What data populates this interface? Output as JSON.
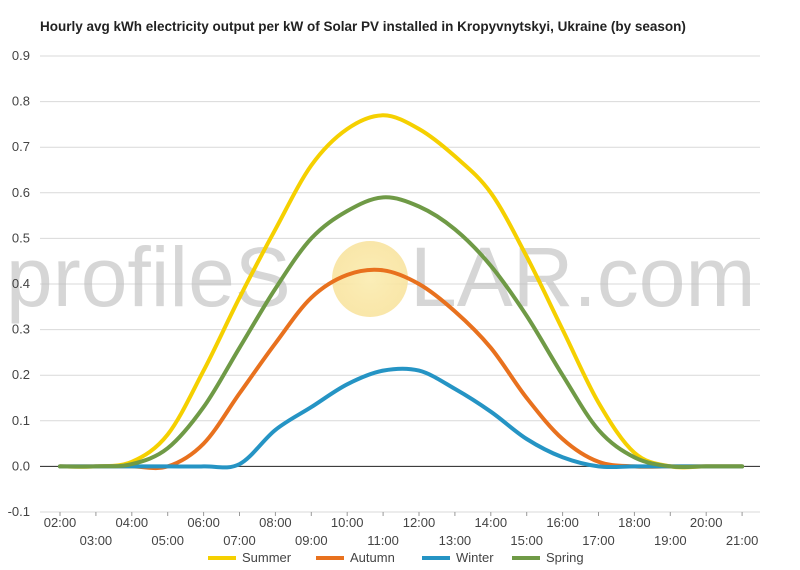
{
  "chart_data": {
    "type": "line",
    "title": "Hourly avg kWh electricity output per kW of Solar PV installed in Kropyvnytskyi, Ukraine (by season)",
    "xlabel": "",
    "ylabel": "",
    "ylim": [
      -0.1,
      0.9
    ],
    "yticks": [
      "-0.1",
      "0.0",
      "0.1",
      "0.2",
      "0.3",
      "0.4",
      "0.5",
      "0.6",
      "0.7",
      "0.8",
      "0.9"
    ],
    "xticks_upper": [
      "02:00",
      "04:00",
      "06:00",
      "08:00",
      "10:00",
      "12:00",
      "14:00",
      "16:00",
      "18:00",
      "20:00"
    ],
    "xticks_lower": [
      "03:00",
      "05:00",
      "07:00",
      "09:00",
      "11:00",
      "13:00",
      "15:00",
      "17:00",
      "19:00",
      "21:00"
    ],
    "x": [
      "02:00",
      "03:00",
      "04:00",
      "05:00",
      "06:00",
      "07:00",
      "08:00",
      "09:00",
      "10:00",
      "11:00",
      "12:00",
      "13:00",
      "14:00",
      "15:00",
      "16:00",
      "17:00",
      "18:00",
      "19:00",
      "20:00",
      "21:00"
    ],
    "grid": true,
    "legend_position": "bottom",
    "series": [
      {
        "name": "Summer",
        "color": "#f5d000",
        "values": [
          0.0,
          0.0,
          0.01,
          0.07,
          0.21,
          0.37,
          0.52,
          0.66,
          0.74,
          0.77,
          0.74,
          0.68,
          0.6,
          0.46,
          0.3,
          0.14,
          0.03,
          0.0,
          0.0,
          0.0
        ]
      },
      {
        "name": "Autumn",
        "color": "#e8711e",
        "values": [
          0.0,
          0.0,
          0.0,
          0.0,
          0.05,
          0.16,
          0.27,
          0.37,
          0.42,
          0.43,
          0.4,
          0.34,
          0.26,
          0.15,
          0.06,
          0.01,
          0.0,
          0.0,
          0.0,
          0.0
        ]
      },
      {
        "name": "Winter",
        "color": "#2594c4",
        "values": [
          0.0,
          0.0,
          0.0,
          0.0,
          0.0,
          0.005,
          0.08,
          0.13,
          0.18,
          0.21,
          0.21,
          0.17,
          0.12,
          0.06,
          0.02,
          0.0,
          0.0,
          0.0,
          0.0,
          0.0
        ]
      },
      {
        "name": "Spring",
        "color": "#6f9a46",
        "values": [
          0.0,
          0.0,
          0.005,
          0.04,
          0.13,
          0.26,
          0.39,
          0.5,
          0.56,
          0.59,
          0.57,
          0.52,
          0.44,
          0.33,
          0.2,
          0.08,
          0.02,
          0.0,
          0.0,
          0.0
        ]
      }
    ]
  },
  "watermark": {
    "text_left": "profileS",
    "text_right": "LAR.com",
    "sun_color": "#f8e6a8"
  }
}
